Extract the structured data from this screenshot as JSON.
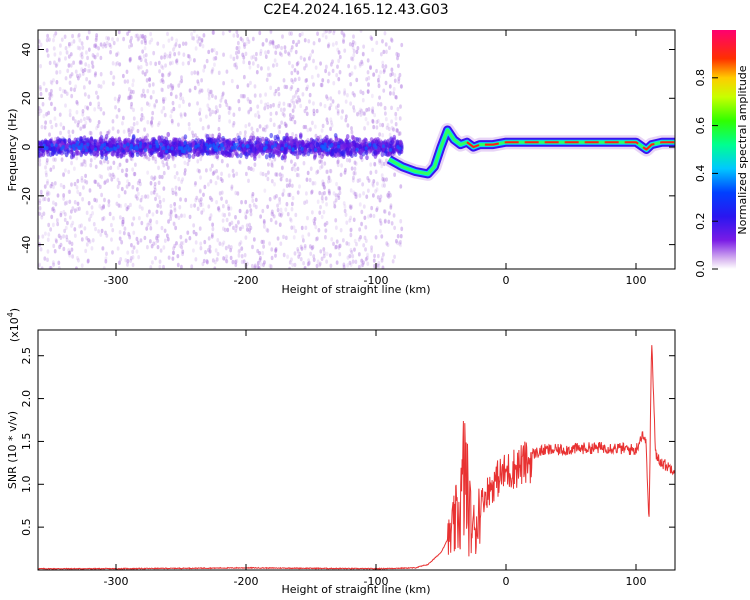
{
  "title": "C2E4.2024.165.12.43.G03",
  "chart_data": [
    {
      "type": "heatmap",
      "xlabel": "Height of straight line (km)",
      "ylabel": "Frequency (Hz)",
      "xlim": [
        -360,
        130
      ],
      "ylim": [
        -50,
        48
      ],
      "x_ticks": [
        -300,
        -200,
        -100,
        0,
        100
      ],
      "x_tick_labels": [
        "-300",
        "-200",
        "-100",
        "0",
        "100"
      ],
      "y_ticks": [
        -40,
        -20,
        0,
        20,
        40
      ],
      "y_tick_labels": [
        "-40",
        "-20",
        "0",
        "20",
        "40"
      ],
      "colorbar": {
        "label": "Normalized spectral amplitude",
        "range": [
          0,
          1
        ],
        "ticks": [
          0.0,
          0.2,
          0.4,
          0.6,
          0.8
        ],
        "tick_labels": [
          "0.0",
          "0.2",
          "0.4",
          "0.6",
          "0.8"
        ],
        "colormap": "rainbow (white-violet-blue-cyan-green-yellow-red-magenta)"
      },
      "ridge": {
        "x": [
          -90,
          -80,
          -70,
          -60,
          -55,
          -50,
          -45,
          -40,
          -35,
          -30,
          -25,
          -20,
          -10,
          0,
          20,
          50,
          80,
          100,
          108,
          112,
          120,
          130
        ],
        "y": [
          -5,
          -8,
          -10,
          -11,
          -8,
          0,
          7,
          3,
          1,
          2,
          0,
          1,
          1,
          2,
          2,
          2,
          2,
          2,
          -1,
          1,
          2,
          2
        ]
      },
      "noise_x_range": [
        -360,
        -80
      ],
      "noise_band_y_range": [
        -10,
        10
      ]
    },
    {
      "type": "line",
      "xlabel": "Height of straight line (km)",
      "ylabel": "SNR (10 * v/v)",
      "ylabel_multiplier": "(x10",
      "ylabel_multiplier_exp": "4",
      "ylabel_multiplier_close": ")",
      "xlim": [
        -360,
        130
      ],
      "ylim": [
        0,
        2.8
      ],
      "x_ticks": [
        -300,
        -200,
        -100,
        0,
        100
      ],
      "x_tick_labels": [
        "-300",
        "-200",
        "-100",
        "0",
        "100"
      ],
      "y_ticks": [
        0.5,
        1.0,
        1.5,
        2.0,
        2.5
      ],
      "y_tick_labels": [
        "0.5",
        "1.0",
        "1.5",
        "2.0",
        "2.5"
      ],
      "series": [
        {
          "color": "#e83232",
          "x": [
            -360,
            -300,
            -200,
            -100,
            -70,
            -60,
            -50,
            -45,
            -40,
            -35,
            -32,
            -28,
            -25,
            -20,
            -15,
            -10,
            -5,
            0,
            10,
            20,
            30,
            40,
            60,
            80,
            100,
            105,
            108,
            110,
            112,
            115,
            120,
            125,
            130
          ],
          "y": [
            0.01,
            0.01,
            0.02,
            0.01,
            0.02,
            0.06,
            0.2,
            0.35,
            0.55,
            0.8,
            1.3,
            0.7,
            0.5,
            0.8,
            0.95,
            1.05,
            1.15,
            1.2,
            1.28,
            1.35,
            1.4,
            1.4,
            1.42,
            1.43,
            1.4,
            1.6,
            1.45,
            0.5,
            2.7,
            1.35,
            1.25,
            1.2,
            1.18
          ]
        }
      ]
    }
  ]
}
